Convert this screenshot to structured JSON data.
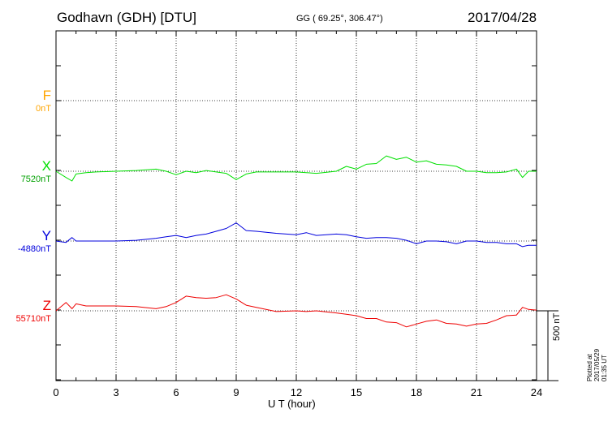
{
  "header": {
    "station": "Godhavn (GDH)  [DTU]",
    "coordinates": "GG ( 69.25°, 306.47°)",
    "date": "2017/04/28"
  },
  "footer": {
    "plotted": "Plotted at 2017/05/29 01:35 UT"
  },
  "chart_data": {
    "type": "line",
    "title": "",
    "xlabel": "U T (hour)",
    "ylabel": "",
    "xlim": [
      0,
      24
    ],
    "xticks": [
      "0",
      "3",
      "6",
      "9",
      "12",
      "15",
      "18",
      "21",
      "24"
    ],
    "grid": true,
    "scale_bar": "500 nT",
    "series": [
      {
        "name": "F",
        "offset_label": "0nT",
        "color": "#ffa500",
        "x": [],
        "values": []
      },
      {
        "name": "X",
        "offset_label": "7520nT",
        "color": "#00e000",
        "x": [
          0,
          0.5,
          0.8,
          1,
          1.5,
          2,
          3,
          4,
          5,
          5.5,
          6,
          6.5,
          7,
          7.5,
          8,
          8.5,
          9,
          9.5,
          10,
          11,
          12,
          12.5,
          13,
          14,
          14.5,
          15,
          15.5,
          16,
          16.5,
          17,
          17.5,
          18,
          18.5,
          19,
          19.5,
          20,
          20.5,
          21,
          21.5,
          22,
          22.5,
          23,
          23.3,
          23.6,
          24
        ],
        "values": [
          7520,
          7430,
          7380,
          7480,
          7500,
          7510,
          7520,
          7530,
          7550,
          7520,
          7470,
          7520,
          7500,
          7530,
          7510,
          7490,
          7400,
          7480,
          7510,
          7510,
          7510,
          7500,
          7490,
          7520,
          7590,
          7550,
          7620,
          7630,
          7740,
          7690,
          7720,
          7650,
          7670,
          7620,
          7610,
          7590,
          7520,
          7520,
          7500,
          7500,
          7510,
          7550,
          7430,
          7520,
          7520
        ]
      },
      {
        "name": "Y",
        "offset_label": "-4880nT",
        "color": "#0000dd",
        "x": [
          0,
          0.5,
          0.8,
          1,
          1.5,
          2,
          3,
          4,
          5,
          5.5,
          6,
          6.5,
          7,
          7.5,
          8,
          8.5,
          9,
          9.5,
          10,
          11,
          12,
          12.5,
          13,
          14,
          14.5,
          15,
          15.5,
          16,
          16.5,
          17,
          17.5,
          18,
          18.5,
          19,
          19.5,
          20,
          20.5,
          21,
          21.5,
          22,
          22.5,
          23,
          23.3,
          23.6,
          24
        ],
        "values": [
          -4880,
          -4900,
          -4830,
          -4880,
          -4880,
          -4880,
          -4880,
          -4870,
          -4840,
          -4820,
          -4800,
          -4830,
          -4800,
          -4780,
          -4740,
          -4700,
          -4620,
          -4730,
          -4740,
          -4770,
          -4790,
          -4760,
          -4800,
          -4780,
          -4790,
          -4820,
          -4840,
          -4830,
          -4830,
          -4840,
          -4870,
          -4920,
          -4880,
          -4880,
          -4890,
          -4920,
          -4880,
          -4880,
          -4900,
          -4900,
          -4920,
          -4920,
          -4960,
          -4940,
          -4940
        ]
      },
      {
        "name": "Z",
        "offset_label": "55710nT",
        "color": "#ee0000",
        "x": [
          0,
          0.5,
          0.8,
          1,
          1.5,
          2,
          3,
          4,
          5,
          5.5,
          6,
          6.5,
          7,
          7.5,
          8,
          8.5,
          9,
          9.5,
          10,
          11,
          12,
          12.5,
          13,
          14,
          14.5,
          15,
          15.5,
          16,
          16.5,
          17,
          17.5,
          18,
          18.5,
          19,
          19.5,
          20,
          20.5,
          21,
          21.5,
          22,
          22.5,
          23,
          23.3,
          23.6,
          24
        ],
        "values": [
          55710,
          55830,
          55740,
          55810,
          55780,
          55780,
          55780,
          55770,
          55740,
          55770,
          55830,
          55920,
          55900,
          55890,
          55900,
          55940,
          55880,
          55790,
          55760,
          55700,
          55710,
          55700,
          55710,
          55680,
          55660,
          55640,
          55600,
          55600,
          55550,
          55540,
          55480,
          55520,
          55560,
          55580,
          55530,
          55520,
          55490,
          55520,
          55530,
          55580,
          55640,
          55650,
          55760,
          55730,
          55720
        ]
      }
    ]
  }
}
